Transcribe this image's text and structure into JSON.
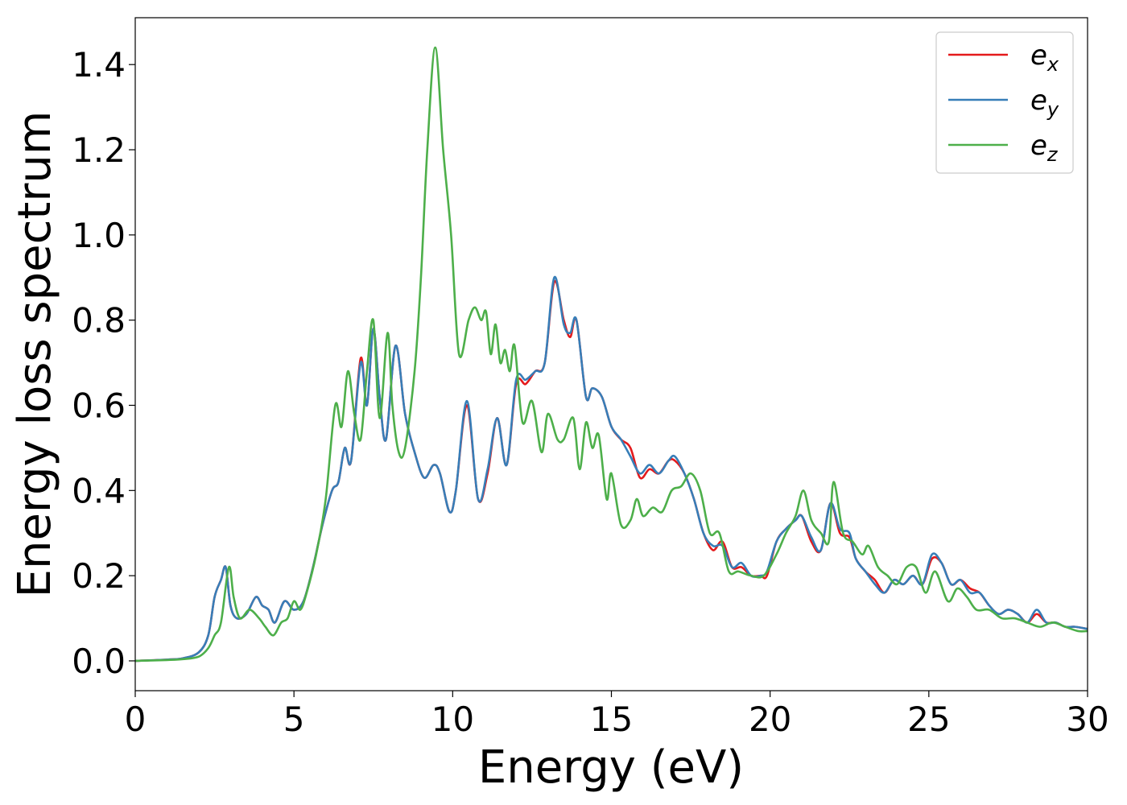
{
  "chart_data": {
    "type": "line",
    "title": "",
    "xlabel": "Energy (eV)",
    "ylabel": "Energy loss spectrum",
    "xlim": [
      0,
      30
    ],
    "ylim": [
      -0.07,
      1.51
    ],
    "xticks": [
      0,
      5,
      10,
      15,
      20,
      25,
      30
    ],
    "xtick_labels": [
      "0",
      "5",
      "10",
      "15",
      "20",
      "25",
      "30"
    ],
    "yticks": [
      0.0,
      0.2,
      0.4,
      0.6,
      0.8,
      1.0,
      1.2,
      1.4
    ],
    "ytick_labels": [
      "0.0",
      "0.2",
      "0.4",
      "0.6",
      "0.8",
      "1.0",
      "1.2",
      "1.4"
    ],
    "grid": false,
    "legend_position": "top-right",
    "series": [
      {
        "name": "e_x",
        "label_base": "e",
        "label_sub": "x",
        "color": "#e41a1c",
        "x": [
          0,
          1,
          1.5,
          2,
          2.3,
          2.5,
          2.7,
          2.85,
          3.0,
          3.2,
          3.5,
          3.8,
          4.0,
          4.2,
          4.4,
          4.7,
          5.0,
          5.3,
          5.6,
          5.9,
          6.2,
          6.4,
          6.6,
          6.8,
          7.1,
          7.3,
          7.5,
          7.7,
          7.9,
          8.2,
          8.5,
          8.8,
          9.1,
          9.4,
          9.6,
          9.9,
          10.1,
          10.45,
          10.8,
          11.1,
          11.4,
          11.7,
          12.0,
          12.3,
          12.6,
          12.9,
          13.2,
          13.5,
          13.7,
          13.9,
          14.2,
          14.4,
          14.7,
          15.0,
          15.3,
          15.6,
          15.9,
          16.2,
          16.5,
          16.8,
          17.0,
          17.3,
          17.6,
          17.9,
          18.2,
          18.5,
          18.8,
          19.1,
          19.4,
          19.7,
          19.9,
          20.2,
          20.5,
          20.8,
          21.0,
          21.3,
          21.6,
          21.9,
          22.2,
          22.5,
          22.7,
          23.0,
          23.3,
          23.6,
          23.9,
          24.2,
          24.5,
          24.8,
          25.1,
          25.4,
          25.7,
          26.0,
          26.3,
          26.6,
          26.9,
          27.2,
          27.5,
          27.8,
          28.1,
          28.4,
          28.7,
          29.0,
          29.3,
          29.6,
          30.0
        ],
        "y": [
          0.0,
          0.003,
          0.006,
          0.02,
          0.06,
          0.15,
          0.19,
          0.22,
          0.13,
          0.1,
          0.11,
          0.15,
          0.13,
          0.12,
          0.09,
          0.14,
          0.12,
          0.14,
          0.22,
          0.32,
          0.4,
          0.42,
          0.5,
          0.47,
          0.71,
          0.6,
          0.78,
          0.62,
          0.52,
          0.74,
          0.58,
          0.49,
          0.43,
          0.46,
          0.44,
          0.35,
          0.4,
          0.6,
          0.38,
          0.44,
          0.57,
          0.46,
          0.65,
          0.65,
          0.68,
          0.7,
          0.89,
          0.8,
          0.76,
          0.8,
          0.62,
          0.64,
          0.62,
          0.55,
          0.52,
          0.5,
          0.43,
          0.45,
          0.44,
          0.47,
          0.47,
          0.44,
          0.38,
          0.3,
          0.26,
          0.28,
          0.22,
          0.22,
          0.2,
          0.2,
          0.2,
          0.28,
          0.31,
          0.33,
          0.34,
          0.28,
          0.26,
          0.37,
          0.3,
          0.29,
          0.24,
          0.21,
          0.19,
          0.16,
          0.19,
          0.18,
          0.2,
          0.18,
          0.24,
          0.23,
          0.18,
          0.19,
          0.17,
          0.16,
          0.13,
          0.11,
          0.12,
          0.11,
          0.09,
          0.11,
          0.09,
          0.09,
          0.08,
          0.08,
          0.075
        ]
      },
      {
        "name": "e_y",
        "label_base": "e",
        "label_sub": "y",
        "color": "#377eb8",
        "x": [
          0,
          1,
          1.5,
          2,
          2.3,
          2.5,
          2.7,
          2.85,
          3.0,
          3.2,
          3.5,
          3.8,
          4.0,
          4.2,
          4.4,
          4.7,
          5.0,
          5.3,
          5.6,
          5.9,
          6.2,
          6.4,
          6.6,
          6.8,
          7.1,
          7.3,
          7.5,
          7.7,
          7.9,
          8.2,
          8.5,
          8.8,
          9.1,
          9.4,
          9.6,
          9.9,
          10.1,
          10.45,
          10.8,
          11.1,
          11.4,
          11.7,
          12.0,
          12.3,
          12.6,
          12.9,
          13.2,
          13.5,
          13.7,
          13.9,
          14.2,
          14.4,
          14.7,
          15.0,
          15.3,
          15.6,
          15.9,
          16.2,
          16.5,
          16.8,
          17.0,
          17.3,
          17.6,
          17.9,
          18.2,
          18.5,
          18.8,
          19.1,
          19.4,
          19.7,
          19.9,
          20.2,
          20.5,
          20.8,
          21.0,
          21.3,
          21.6,
          21.9,
          22.2,
          22.5,
          22.7,
          23.0,
          23.3,
          23.6,
          23.9,
          24.2,
          24.5,
          24.8,
          25.1,
          25.4,
          25.7,
          26.0,
          26.3,
          26.6,
          26.9,
          27.2,
          27.5,
          27.8,
          28.1,
          28.4,
          28.7,
          29.0,
          29.3,
          29.6,
          30.0
        ],
        "y": [
          0.0,
          0.003,
          0.006,
          0.02,
          0.06,
          0.15,
          0.19,
          0.22,
          0.13,
          0.1,
          0.11,
          0.15,
          0.13,
          0.12,
          0.09,
          0.14,
          0.12,
          0.14,
          0.22,
          0.32,
          0.4,
          0.42,
          0.5,
          0.47,
          0.7,
          0.6,
          0.78,
          0.62,
          0.52,
          0.74,
          0.58,
          0.49,
          0.43,
          0.46,
          0.44,
          0.35,
          0.4,
          0.61,
          0.38,
          0.45,
          0.57,
          0.46,
          0.66,
          0.66,
          0.68,
          0.7,
          0.9,
          0.79,
          0.77,
          0.8,
          0.62,
          0.64,
          0.62,
          0.55,
          0.52,
          0.48,
          0.44,
          0.46,
          0.44,
          0.47,
          0.48,
          0.44,
          0.38,
          0.3,
          0.27,
          0.27,
          0.22,
          0.23,
          0.2,
          0.2,
          0.21,
          0.28,
          0.31,
          0.33,
          0.34,
          0.29,
          0.26,
          0.37,
          0.31,
          0.3,
          0.24,
          0.21,
          0.18,
          0.16,
          0.19,
          0.18,
          0.2,
          0.18,
          0.25,
          0.23,
          0.18,
          0.19,
          0.16,
          0.16,
          0.13,
          0.11,
          0.12,
          0.11,
          0.09,
          0.12,
          0.09,
          0.09,
          0.08,
          0.08,
          0.075
        ]
      },
      {
        "name": "e_z",
        "label_base": "e",
        "label_sub": "z",
        "color": "#4daf4a",
        "x": [
          0,
          1,
          1.5,
          2,
          2.3,
          2.5,
          2.7,
          2.95,
          3.1,
          3.3,
          3.6,
          3.9,
          4.1,
          4.35,
          4.6,
          4.8,
          5.0,
          5.2,
          5.4,
          5.7,
          6.0,
          6.3,
          6.5,
          6.7,
          6.9,
          7.1,
          7.3,
          7.5,
          7.7,
          7.95,
          8.1,
          8.3,
          8.5,
          8.8,
          9.0,
          9.2,
          9.45,
          9.7,
          9.95,
          10.2,
          10.5,
          10.7,
          10.9,
          11.05,
          11.2,
          11.35,
          11.5,
          11.65,
          11.8,
          11.95,
          12.2,
          12.5,
          12.8,
          13.0,
          13.3,
          13.5,
          13.8,
          14.0,
          14.2,
          14.4,
          14.6,
          14.85,
          15.0,
          15.3,
          15.6,
          15.8,
          16.0,
          16.3,
          16.6,
          16.9,
          17.2,
          17.5,
          17.8,
          18.1,
          18.4,
          18.7,
          19.0,
          19.4,
          19.8,
          20.2,
          20.5,
          20.8,
          21.05,
          21.3,
          21.6,
          21.85,
          22.0,
          22.3,
          22.6,
          22.9,
          23.1,
          23.4,
          23.7,
          24.0,
          24.3,
          24.6,
          24.9,
          25.2,
          25.6,
          25.9,
          26.2,
          26.5,
          26.9,
          27.3,
          27.7,
          28.1,
          28.5,
          28.9,
          29.3,
          29.7,
          30.0
        ],
        "y": [
          0.0,
          0.002,
          0.004,
          0.01,
          0.03,
          0.06,
          0.09,
          0.22,
          0.15,
          0.1,
          0.12,
          0.1,
          0.08,
          0.06,
          0.09,
          0.1,
          0.14,
          0.12,
          0.16,
          0.25,
          0.38,
          0.6,
          0.55,
          0.68,
          0.58,
          0.52,
          0.68,
          0.8,
          0.57,
          0.77,
          0.6,
          0.49,
          0.5,
          0.68,
          0.9,
          1.2,
          1.44,
          1.2,
          1.0,
          0.72,
          0.8,
          0.83,
          0.8,
          0.82,
          0.72,
          0.79,
          0.7,
          0.73,
          0.68,
          0.74,
          0.56,
          0.61,
          0.49,
          0.58,
          0.52,
          0.52,
          0.57,
          0.45,
          0.56,
          0.5,
          0.53,
          0.38,
          0.44,
          0.32,
          0.33,
          0.38,
          0.34,
          0.36,
          0.35,
          0.4,
          0.41,
          0.44,
          0.4,
          0.3,
          0.3,
          0.21,
          0.21,
          0.2,
          0.2,
          0.25,
          0.3,
          0.34,
          0.4,
          0.33,
          0.3,
          0.28,
          0.42,
          0.3,
          0.28,
          0.25,
          0.27,
          0.22,
          0.2,
          0.18,
          0.22,
          0.22,
          0.16,
          0.21,
          0.14,
          0.17,
          0.15,
          0.12,
          0.12,
          0.1,
          0.1,
          0.09,
          0.08,
          0.09,
          0.08,
          0.07,
          0.07
        ]
      }
    ]
  }
}
